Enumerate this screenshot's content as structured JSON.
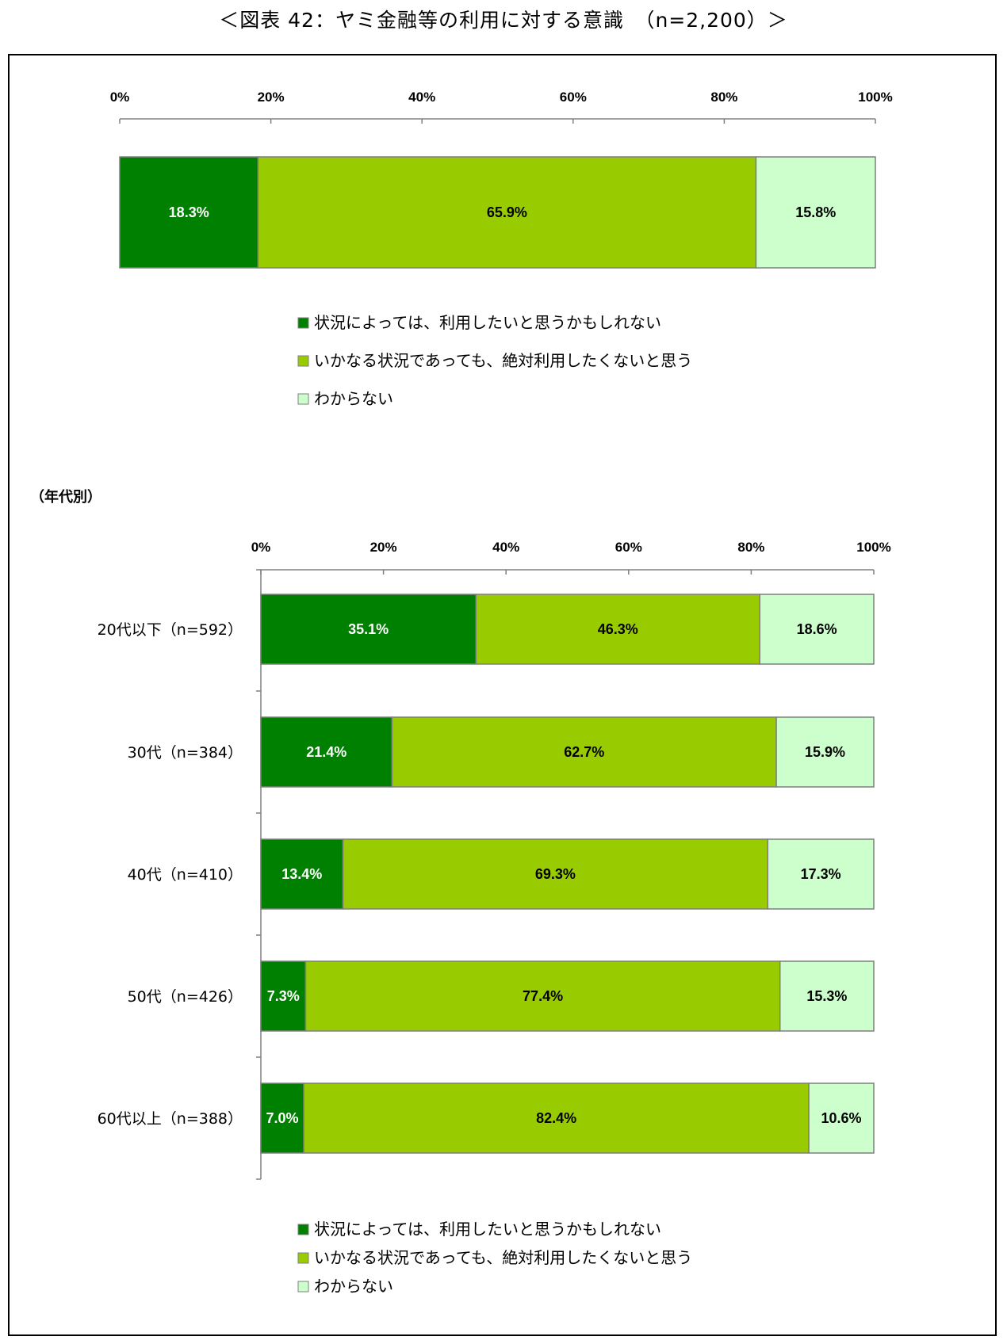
{
  "figure_title": "＜図表 42：ヤミ金融等の利用に対する意識　（n=2,200）＞",
  "colors": {
    "series1": "#008000",
    "series2": "#99cc00",
    "series3": "#ccffcc",
    "axis": "#808080",
    "bar_border": "#7f7f7f"
  },
  "chart_data": [
    {
      "type": "bar",
      "orientation": "horizontal",
      "stacked": "percent",
      "categories": [
        ""
      ],
      "series": [
        {
          "name": "状況によっては、利用したいと思うかもしれない",
          "values": [
            18.3
          ]
        },
        {
          "name": "いかなる状況であっても、絶対利用したくないと思う",
          "values": [
            65.9
          ]
        },
        {
          "name": "わからない",
          "values": [
            15.8
          ]
        }
      ],
      "data_labels": [
        [
          "18.3%"
        ],
        [
          "65.9%"
        ],
        [
          "15.8%"
        ]
      ],
      "xlim": [
        0,
        100
      ],
      "x_ticks": [
        "0%",
        "20%",
        "40%",
        "60%",
        "80%",
        "100%"
      ],
      "legend": {
        "position": "bottom",
        "entries": [
          "状況によっては、利用したいと思うかもしれない",
          "いかなる状況であっても、絶対利用したくないと思う",
          "わからない"
        ]
      },
      "grid": false
    },
    {
      "type": "bar",
      "orientation": "horizontal",
      "stacked": "percent",
      "group_note": "（年代別）",
      "categories": [
        "20代以下（n=592）",
        "30代（n=384）",
        "40代（n=410）",
        "50代（n=426）",
        "60代以上（n=388）"
      ],
      "series": [
        {
          "name": "状況によっては、利用したいと思うかもしれない",
          "values": [
            35.1,
            21.4,
            13.4,
            7.3,
            7.0
          ]
        },
        {
          "name": "いかなる状況であっても、絶対利用したくないと思う",
          "values": [
            46.3,
            62.7,
            69.3,
            77.4,
            82.4
          ]
        },
        {
          "name": "わからない",
          "values": [
            18.6,
            15.9,
            17.3,
            15.3,
            10.6
          ]
        }
      ],
      "data_labels": [
        [
          "35.1%",
          "21.4%",
          "13.4%",
          "7.3%",
          "7.0%"
        ],
        [
          "46.3%",
          "62.7%",
          "69.3%",
          "77.4%",
          "82.4%"
        ],
        [
          "18.6%",
          "15.9%",
          "17.3%",
          "15.3%",
          "10.6%"
        ]
      ],
      "xlim": [
        0,
        100
      ],
      "x_ticks": [
        "0%",
        "20%",
        "40%",
        "60%",
        "80%",
        "100%"
      ],
      "legend": {
        "position": "bottom",
        "entries": [
          "状況によっては、利用したいと思うかもしれない",
          "いかなる状況であっても、絶対利用したくないと思う",
          "わからない"
        ]
      },
      "grid": false
    }
  ]
}
